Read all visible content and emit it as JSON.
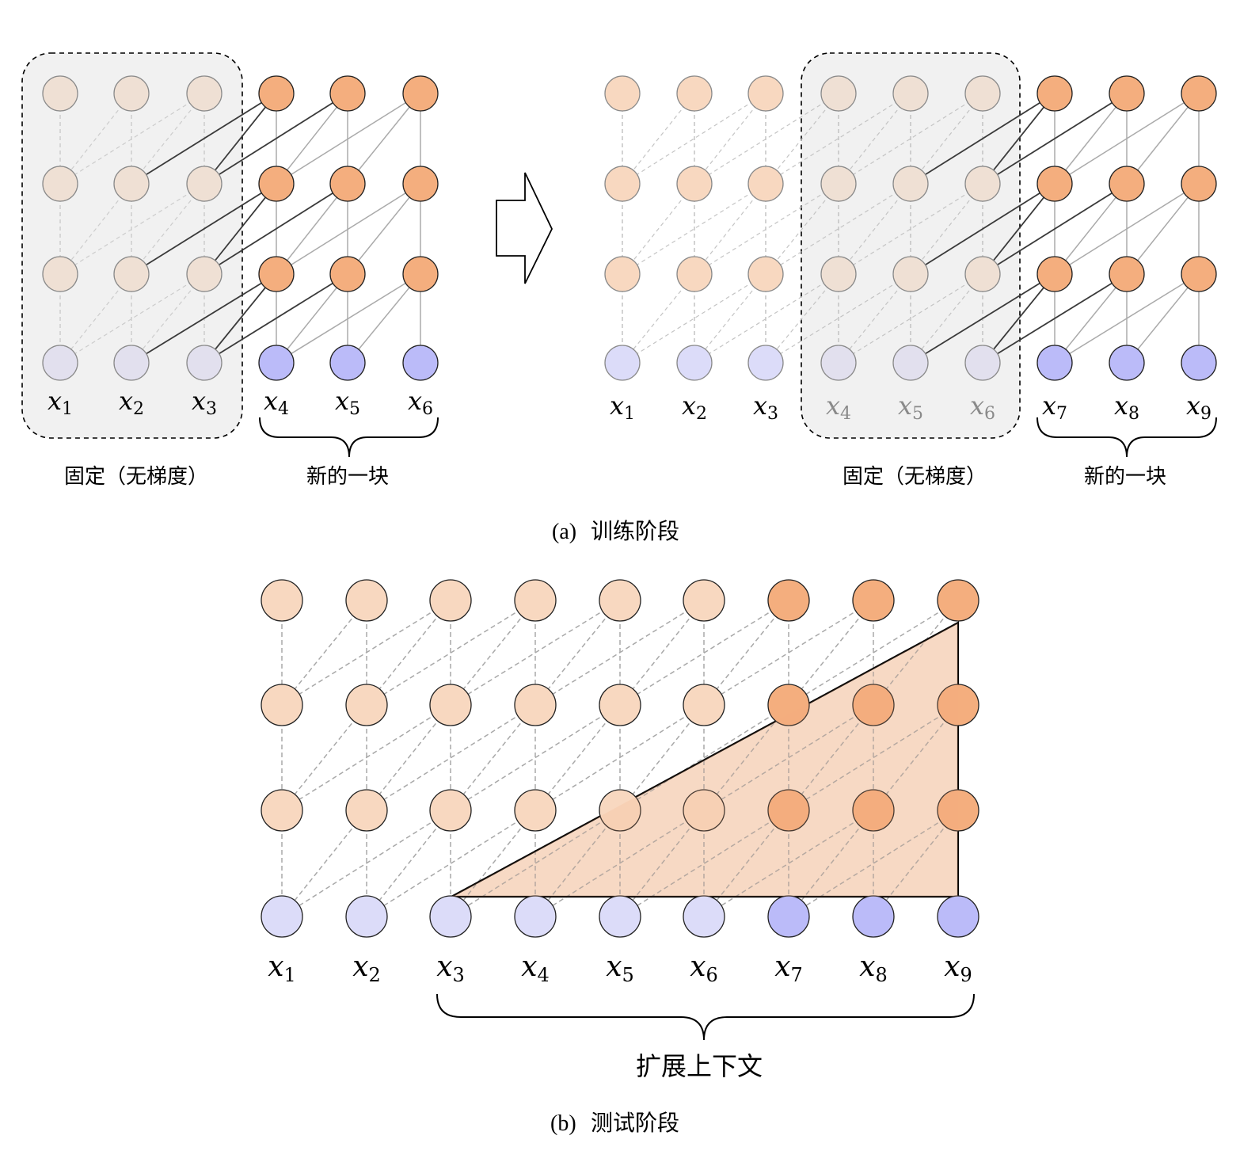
{
  "colors": {
    "new_hidden": "#f4ae7e",
    "old_hidden": "#f8d8c0",
    "frozen_hidden": "#efe0d4",
    "new_input": "#bbbbf9",
    "old_input": "#dcdcf9",
    "frozen_input": "#e2e0ee",
    "frozen_box": "#f1f1f1",
    "window_fill": "#f8e3d3"
  },
  "panel_a": {
    "left": {
      "x_labels": [
        "x1",
        "x2",
        "x3",
        "x4",
        "x5",
        "x6"
      ],
      "frozen_label": "固定（无梯度）",
      "new_block_label": "新的一块"
    },
    "right": {
      "x_labels": [
        "x1",
        "x2",
        "x3",
        "x4",
        "x5",
        "x6",
        "x7",
        "x8",
        "x9"
      ],
      "frozen_label": "固定（无梯度）",
      "new_block_label": "新的一块"
    },
    "caption_tag": "(a)",
    "caption": "训练阶段"
  },
  "panel_b": {
    "x_labels": [
      "x1",
      "x2",
      "x3",
      "x4",
      "x5",
      "x6",
      "x7",
      "x8",
      "x9"
    ],
    "extended_context_label": "扩展上下文",
    "caption_tag": "(b)",
    "caption": "测试阶段"
  }
}
